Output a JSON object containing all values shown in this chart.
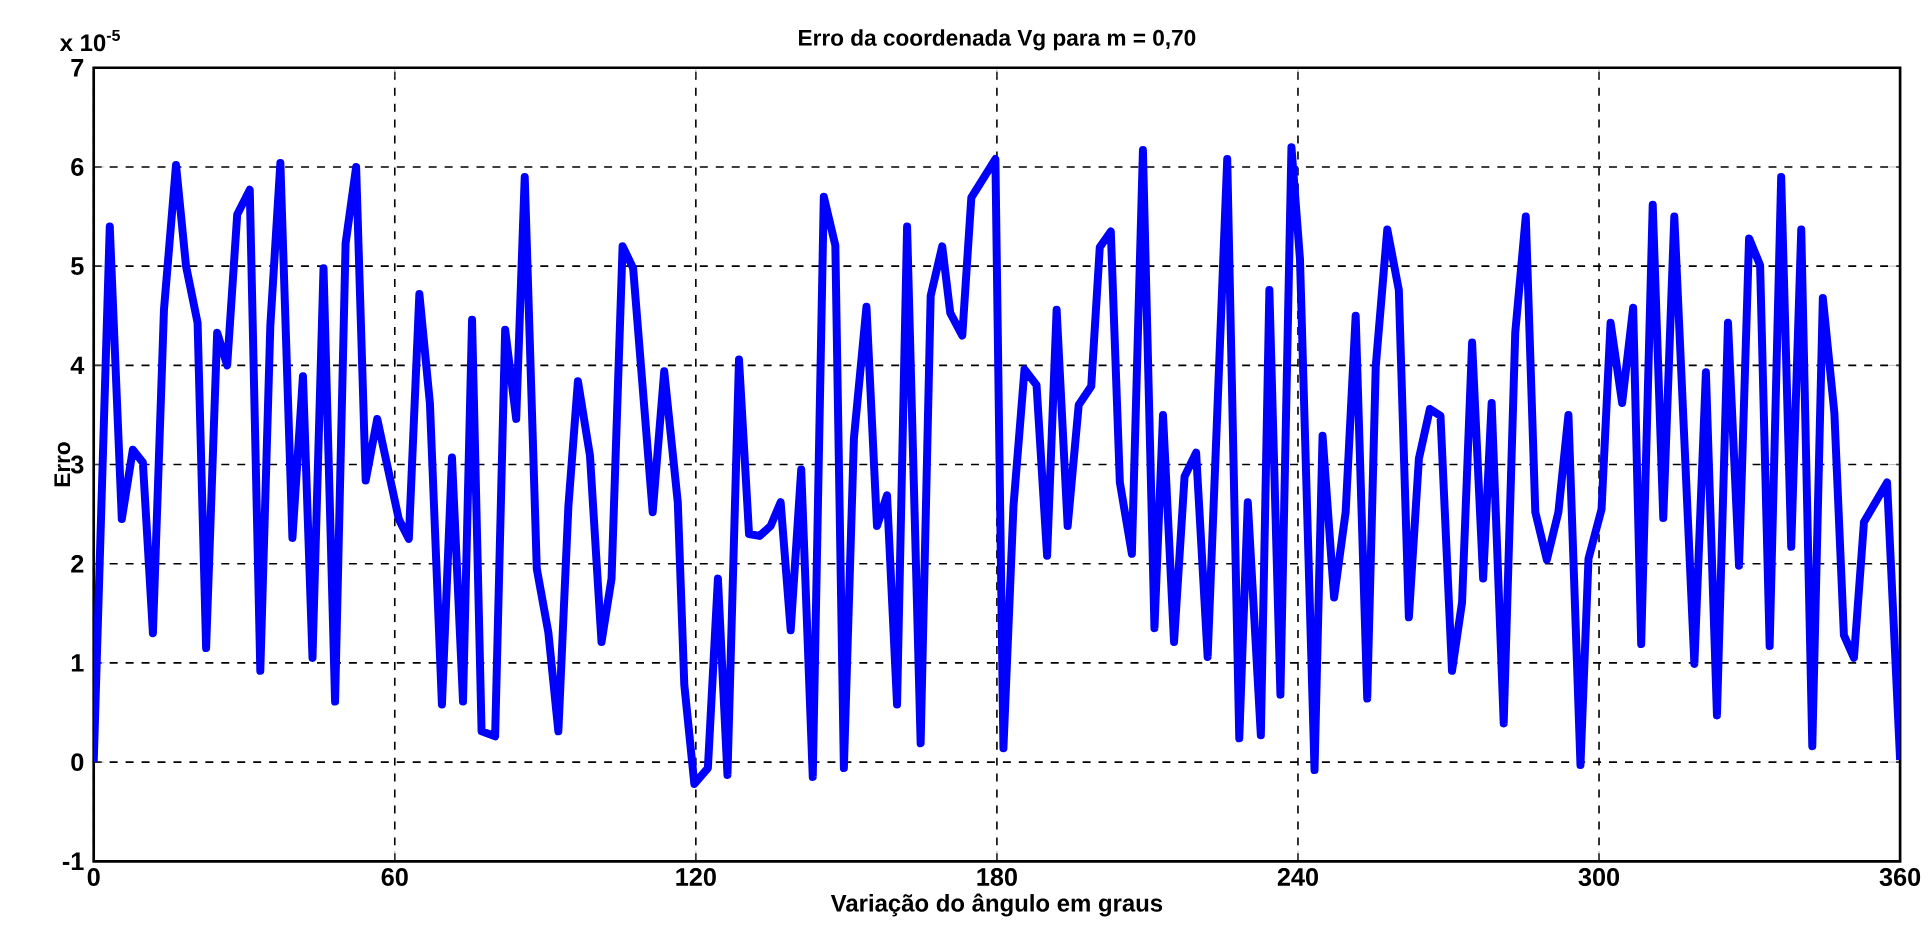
{
  "chart_data": {
    "type": "line",
    "title": "Erro da coordenada Vg para m = 0,70",
    "xlabel": "Variação do ângulo em graus",
    "ylabel": "Erro",
    "annotations": [
      "x 10$^{-5}$"
    ],
    "x": [
      0,
      3.2,
      5.6,
      7.8,
      9.8,
      11.8,
      14.0,
      16.4,
      18.4,
      20.7,
      22.4,
      24.6,
      26.6,
      28.6,
      31.1,
      33.2,
      35.2,
      37.2,
      39.6,
      41.7,
      43.6,
      45.8,
      48.1,
      50.2,
      52.3,
      54.2,
      56.5,
      60.8,
      62.8,
      64.9,
      67.0,
      69.4,
      71.4,
      73.6,
      75.4,
      77.3,
      80.0,
      82.0,
      84.2,
      85.9,
      88.3,
      90.6,
      92.6,
      94.6,
      96.5,
      98.9,
      101.2,
      103.2,
      105.4,
      107.5,
      111.4,
      113.7,
      116.4,
      117.7,
      119.7,
      122.4,
      124.4,
      126.3,
      128.6,
      130.6,
      132.7,
      134.9,
      136.9,
      138.9,
      141.0,
      143.3,
      145.5,
      147.8,
      149.5,
      151.5,
      154.0,
      156.1,
      158.1,
      160.1,
      162.1,
      164.8,
      166.8,
      169.1,
      170.7,
      173.1,
      174.9,
      179.7,
      181.3,
      183.3,
      185.5,
      187.9,
      190.0,
      191.9,
      194.1,
      196.3,
      198.8,
      200.5,
      202.7,
      204.5,
      206.9,
      209.1,
      211.4,
      213.1,
      215.3,
      217.4,
      219.7,
      222.0,
      225.9,
      228.3,
      230.0,
      232.6,
      234.3,
      236.5,
      238.7,
      240.4,
      243.3,
      244.9,
      247.2,
      249.5,
      251.5,
      253.8,
      255.5,
      257.8,
      260.1,
      262.1,
      264.1,
      266.3,
      268.4,
      270.7,
      272.7,
      274.7,
      276.9,
      278.6,
      281.0,
      283.3,
      285.4,
      287.3,
      289.6,
      291.9,
      293.9,
      296.3,
      297.9,
      300.5,
      302.3,
      304.6,
      306.8,
      308.4,
      310.7,
      312.8,
      315.0,
      319.0,
      321.3,
      323.5,
      325.7,
      327.9,
      329.9,
      332.1,
      334.0,
      336.3,
      338.3,
      340.3,
      342.5,
      344.6,
      346.9,
      348.8,
      350.8,
      352.8,
      357.4,
      360
    ],
    "values": [
      0,
      5.4,
      2.45,
      3.15,
      3.02,
      1.3,
      4.56,
      6.02,
      5.0,
      4.43,
      1.15,
      4.33,
      4.0,
      5.52,
      5.77,
      0.92,
      4.4,
      6.04,
      2.26,
      3.89,
      1.05,
      4.98,
      0.61,
      5.23,
      6.0,
      2.84,
      3.46,
      2.45,
      2.25,
      4.72,
      3.62,
      0.58,
      3.07,
      0.61,
      4.46,
      0.31,
      0.26,
      4.36,
      3.46,
      5.9,
      1.95,
      1.31,
      0.31,
      2.58,
      3.84,
      3.09,
      1.21,
      1.85,
      5.2,
      4.98,
      2.52,
      3.94,
      2.62,
      0.78,
      -0.22,
      -0.06,
      1.85,
      -0.13,
      4.06,
      2.3,
      2.28,
      2.38,
      2.62,
      1.33,
      2.95,
      -0.15,
      5.7,
      5.21,
      -0.06,
      3.26,
      4.59,
      2.38,
      2.69,
      0.58,
      5.4,
      0.19,
      4.7,
      5.2,
      4.53,
      4.3,
      5.69,
      6.08,
      0.14,
      2.58,
      3.96,
      3.8,
      2.08,
      4.56,
      2.38,
      3.6,
      3.79,
      5.19,
      5.35,
      2.82,
      2.1,
      6.17,
      1.35,
      3.5,
      1.21,
      2.88,
      3.12,
      1.06,
      6.08,
      0.24,
      2.62,
      0.27,
      4.76,
      0.68,
      6.2,
      5.07,
      -0.08,
      3.29,
      1.66,
      2.52,
      4.5,
      0.64,
      3.99,
      5.37,
      4.76,
      1.46,
      3.06,
      3.56,
      3.49,
      0.92,
      1.61,
      4.23,
      1.85,
      3.62,
      0.39,
      4.33,
      5.5,
      2.52,
      2.04,
      2.52,
      3.5,
      -0.03,
      2.05,
      2.55,
      4.43,
      3.62,
      4.58,
      1.19,
      5.62,
      2.46,
      5.5,
      0.99,
      3.93,
      0.47,
      4.43,
      1.98,
      5.28,
      5.01,
      1.17,
      5.9,
      2.17,
      5.37,
      0.16,
      4.68,
      3.52,
      1.28,
      1.05,
      2.42,
      2.82,
      0.02
    ],
    "color": "#0000ff",
    "xlim": [
      0,
      360
    ],
    "ylim": [
      -1,
      7
    ],
    "xticks": [
      0,
      60,
      120,
      180,
      240,
      300,
      360
    ],
    "yticks": [
      -1,
      0,
      1,
      2,
      3,
      4,
      5,
      6,
      7
    ],
    "grid": true,
    "line_style": "solid"
  }
}
